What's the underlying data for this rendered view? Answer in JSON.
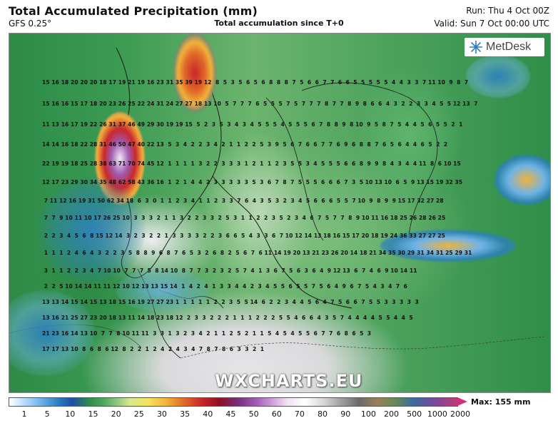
{
  "header": {
    "title": "Total Accumulated Precipitation (mm)",
    "model": "GFS 0.25°",
    "subtitle": "Total accumulation since T+0",
    "run": "Run: Thu 4 Oct 00Z",
    "valid": "Valid: Sun 7 Oct 00:00 UTC"
  },
  "logo": {
    "text": "MetDesk",
    "icon": "metdesk-icon"
  },
  "watermark": "WXCHARTS.EU",
  "legend": {
    "max_label": "Max: 155 mm",
    "ticks": [
      "1",
      "5",
      "10",
      "15",
      "20",
      "25",
      "30",
      "35",
      "40",
      "45",
      "50",
      "60",
      "70",
      "80",
      "90",
      "100",
      "200",
      "500",
      "1000",
      "2000"
    ]
  },
  "grid_rows": [
    "15 16 18 20 20 20 18 17 19 21 19 16 23 31 35 39 19 12  8  5  3  5  6  5  6  8  8  8  7  5  6  6  7  7  6  6  5  5  5  5  5  4  4  3  3  7 11 10  9  8  7",
    "15 16 16 15 17 18 20 23 26 25 22 24 31 24 27 27 18 13 10  5  7  7  7  6  5  5  5  7  5  7  7  7  8  7  7  8  9  8  6  6  4  3  2  2  3  3  4  5  5 12 13  7",
    "11 13 16 17 19 22 26 31 37 46 49 29 30 19 19 15  5  2  3  5  3  4  3  4  5  5  5  4  5  5  5  6  7  8  8  9  8 10  9  5  8  7  5  4  4  5  6  5  5  2  1",
    "14 14 16 18 22 28 31 46 50 47 40 22 13  5  3  4  2  2  3  4  2  1  1  2  2  5  3  9  5  6  7  6  6  7  7  6  9  6  8  8  7  6  5  6  4  4  6  5  2  2",
    "22 19 19 18 25 28 38 63 71 70 74 45 12  1  1  1  1  3  2  2  3  3  3  1  2  1  1  2  3  5  5  3  4  5  5  5  6  6  8  9  9  8  4  3  4  4 11  8  6 10 15",
    "12 17 23 29 30 34 35 48 62 58 43 36 16  1  2  1  4  4  2  3  3  3  3  3  5  3  6  7  8  7  5  5  5  6  6  6  7  3  5 10 13 10  6  5  9 13 15 19 32 35",
    " 7 11 12 16 19 31 50 62 34 18  6  3  0  1  1  2  3  4  1  1  2  3  3  7  6  4  3  5  3  2  3  4  5  6  6  6  5  5  7 10  9  8  9  9 15 17 32 27 28",
    " 7  7  9 10 11 10 17 26 25 10  3  3  3  2  1  1  3  2  2  3  3  2  5  3  1  1  2  2  3  5  2  3  4  6  7  5  7  7  8  9 10 11 16 18 25 26 28 26 25",
    " 2  2  3  4  5  6  8 15 12 14  3  2  3  2  2  1  3  3  3  3  2  2  3  6  6  5  4  3  3  6  7 10 12 14 13 18 16 15 17 20 18 19 24 36 33 27 27 25",
    " 1  1  1  2  4  6  4  3  2  2  3  5  8  8  9  6  8  7  6  5  3  2  6  8  2  5  6  7  6 11 14 19 20 13 21 23 26 20 14 18 21 34 35 30 29 31 34 31 25 29 31",
    " 3  1  1  2  2  3  4  7 10 10  7  7  7  5  8 14 10  8  7  7  3  2  3  2  5  7  4  1  3  6  7  5  6  3  6  4  9 12 13  6  7  4  6  9 10 14 11",
    " 2  2  5 10 14 14 11 11 12 10 12 13 13 15 14  1  4  2  4  1  3  3  4  4  2  3  4  5  5  6  5  5  7  5  6  4  9  6  7  5  4  3  4  7  6",
    "13 13 14 15 14 15 13 18 15 16 19 27 27 23 1  1  1  1  1  2  2  3  5  5 14  6  2  2  3  4  4  5  6  4  7  5  6  6  7  5  5  3  3  3  3  3",
    "13 16 21 25 27 23 20 18 13 11 14 18 23 18 12  2  3  3  2  2  2  1  1  1  2  2  2  5  5  4  6  6  4  3  5  7  4  4  4  4  5  5  4  4  5",
    "21 23 16 14 13 10  7  7  8 10 11 11  3  3  1  3  2  3  4  2  1  1  2  5  2  1  1  5  4  5  4  5  5  6  7  7  6  8  6  5  3",
    "17 17 13 10  8  6  8  6 12  8  2  2  1  2  4  2  4  3  4  7  8  7  8  6  3  3  2  1"
  ]
}
